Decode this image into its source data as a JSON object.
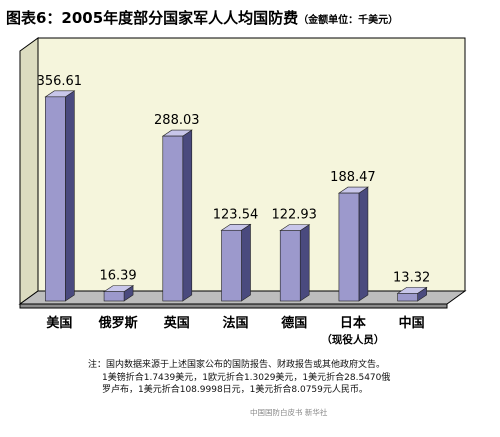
{
  "title": {
    "main": "图表6：2005年度部分国家军人人均国防费",
    "sub": "（金额单位：千美元）"
  },
  "chart_data": {
    "type": "bar",
    "categories": [
      "美国",
      "俄罗斯",
      "英国",
      "法国",
      "德国",
      "日本",
      "中国"
    ],
    "category_sublabels": [
      "",
      "",
      "",
      "",
      "",
      "（现役人员）",
      ""
    ],
    "values": [
      356.61,
      16.39,
      288.03,
      123.54,
      122.93,
      188.47,
      13.32
    ],
    "value_labels": [
      "356.61",
      "16.39",
      "288.03",
      "123.54",
      "122.93",
      "188.47",
      "13.32"
    ],
    "ylim": [
      0,
      400
    ],
    "grid": false,
    "legend": "none",
    "style": "3d-bar"
  },
  "colors": {
    "bar_front": "#9c99cc",
    "bar_side": "#4a4a7e",
    "bar_top": "#c8c6ea",
    "wall": "#f5f5dc",
    "floor": "#bdbdbd",
    "frame": "#000000"
  },
  "notes": {
    "lines": [
      "注：国内数据来源于上述国家公布的国防报告、财政报告或其他政府文告。",
      "1美镑折合1.7439美元，1欧元折合1.3029美元，1美元折合28.5470俄",
      "罗卢布，1美元折合108.9998日元，1美元折合8.0759元人民币。"
    ],
    "source": "中国国防白皮书  新华社"
  }
}
